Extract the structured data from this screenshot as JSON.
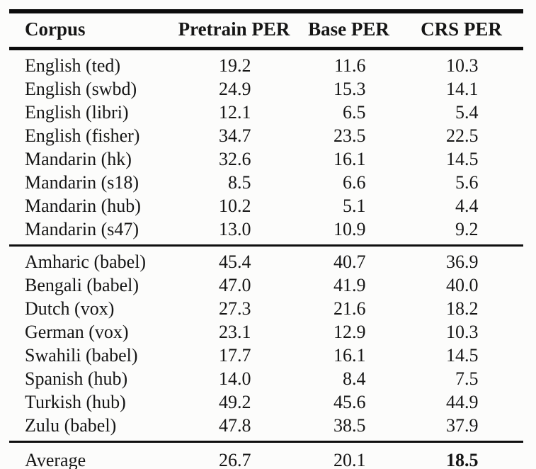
{
  "table": {
    "columns": [
      "Corpus",
      "Pretrain PER",
      "Base PER",
      "CRS PER"
    ],
    "sections": [
      {
        "rows": [
          {
            "corpus": "English (ted)",
            "pretrain_per": "19.2",
            "base_per": "11.6",
            "crs_per": "10.3"
          },
          {
            "corpus": "English (swbd)",
            "pretrain_per": "24.9",
            "base_per": "15.3",
            "crs_per": "14.1"
          },
          {
            "corpus": "English (libri)",
            "pretrain_per": "12.1",
            "base_per": "6.5",
            "crs_per": "5.4"
          },
          {
            "corpus": "English (fisher)",
            "pretrain_per": "34.7",
            "base_per": "23.5",
            "crs_per": "22.5"
          },
          {
            "corpus": "Mandarin (hk)",
            "pretrain_per": "32.6",
            "base_per": "16.1",
            "crs_per": "14.5"
          },
          {
            "corpus": "Mandarin (s18)",
            "pretrain_per": "8.5",
            "base_per": "6.6",
            "crs_per": "5.6"
          },
          {
            "corpus": "Mandarin (hub)",
            "pretrain_per": "10.2",
            "base_per": "5.1",
            "crs_per": "4.4"
          },
          {
            "corpus": "Mandarin (s47)",
            "pretrain_per": "13.0",
            "base_per": "10.9",
            "crs_per": "9.2"
          }
        ]
      },
      {
        "rows": [
          {
            "corpus": "Amharic (babel)",
            "pretrain_per": "45.4",
            "base_per": "40.7",
            "crs_per": "36.9"
          },
          {
            "corpus": "Bengali (babel)",
            "pretrain_per": "47.0",
            "base_per": "41.9",
            "crs_per": "40.0"
          },
          {
            "corpus": "Dutch (vox)",
            "pretrain_per": "27.3",
            "base_per": "21.6",
            "crs_per": "18.2"
          },
          {
            "corpus": "German (vox)",
            "pretrain_per": "23.1",
            "base_per": "12.9",
            "crs_per": "10.3"
          },
          {
            "corpus": "Swahili (babel)",
            "pretrain_per": "17.7",
            "base_per": "16.1",
            "crs_per": "14.5"
          },
          {
            "corpus": "Spanish (hub)",
            "pretrain_per": "14.0",
            "base_per": "8.4",
            "crs_per": "7.5"
          },
          {
            "corpus": "Turkish (hub)",
            "pretrain_per": "49.2",
            "base_per": "45.6",
            "crs_per": "44.9"
          },
          {
            "corpus": "Zulu (babel)",
            "pretrain_per": "47.8",
            "base_per": "38.5",
            "crs_per": "37.9"
          }
        ]
      }
    ],
    "footer": {
      "label": "Average",
      "pretrain_per": "26.7",
      "base_per": "20.1",
      "crs_per": "18.5"
    }
  }
}
